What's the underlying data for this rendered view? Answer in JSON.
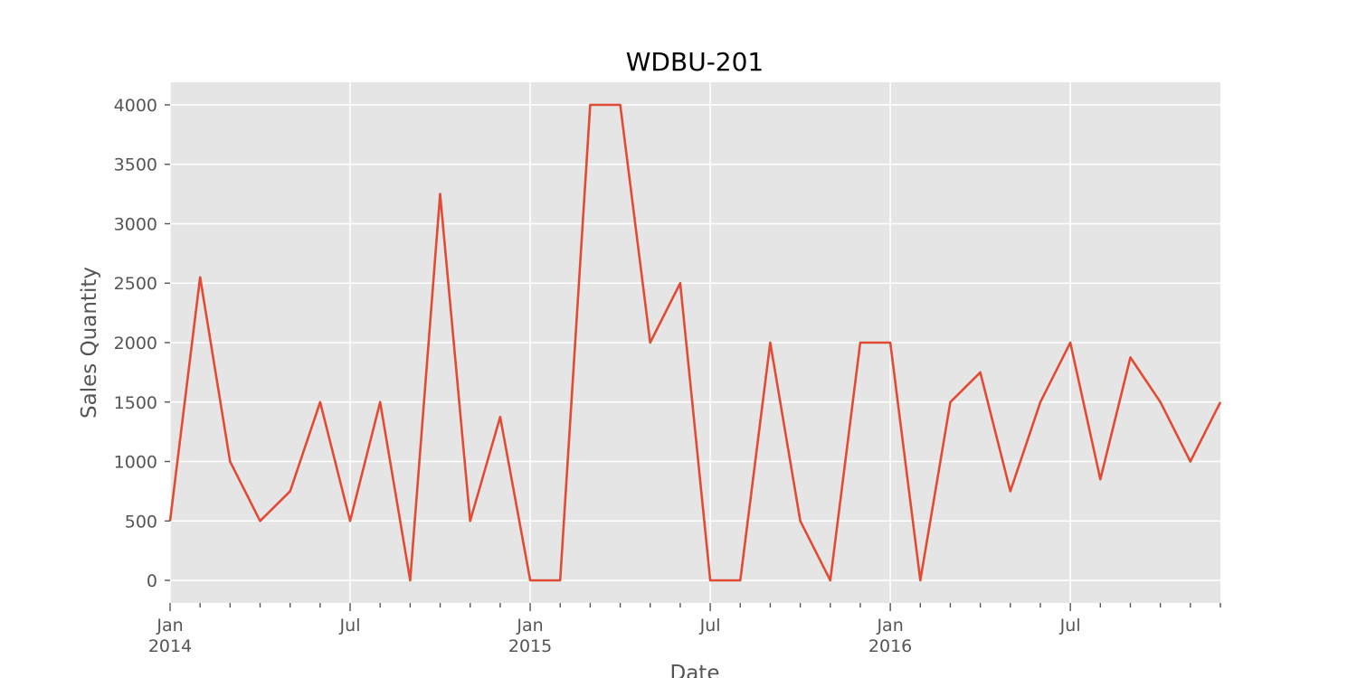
{
  "chart_data": {
    "type": "line",
    "title": "WDBU-201",
    "xlabel": "Date",
    "ylabel": "Sales Quantity",
    "ylim": [
      -190,
      4190
    ],
    "xlim": [
      "2014-01",
      "2016-12"
    ],
    "grid": true,
    "y_ticks": [
      0,
      500,
      1000,
      1500,
      2000,
      2500,
      3000,
      3500,
      4000
    ],
    "x_major_ticks": [
      {
        "date": "2014-01",
        "label": "Jan",
        "year": "2014"
      },
      {
        "date": "2014-07",
        "label": "Jul",
        "year": ""
      },
      {
        "date": "2015-01",
        "label": "Jan",
        "year": "2015"
      },
      {
        "date": "2015-07",
        "label": "Jul",
        "year": ""
      },
      {
        "date": "2016-01",
        "label": "Jan",
        "year": "2016"
      },
      {
        "date": "2016-07",
        "label": "Jul",
        "year": ""
      }
    ],
    "colors": {
      "series": "#E24A33",
      "plot_background": "#E5E5E5"
    },
    "x": [
      "2014-01",
      "2014-02",
      "2014-03",
      "2014-04",
      "2014-05",
      "2014-06",
      "2014-07",
      "2014-08",
      "2014-09",
      "2014-10",
      "2014-11",
      "2014-12",
      "2015-01",
      "2015-02",
      "2015-03",
      "2015-04",
      "2015-05",
      "2015-06",
      "2015-07",
      "2015-08",
      "2015-09",
      "2015-10",
      "2015-11",
      "2015-12",
      "2016-01",
      "2016-02",
      "2016-03",
      "2016-04",
      "2016-05",
      "2016-06",
      "2016-07",
      "2016-08",
      "2016-09",
      "2016-10",
      "2016-11",
      "2016-12"
    ],
    "values": [
      500,
      2550,
      1000,
      500,
      750,
      1500,
      500,
      1500,
      0,
      3250,
      500,
      1375,
      0,
      0,
      4000,
      4000,
      2000,
      2500,
      0,
      0,
      2000,
      500,
      0,
      2000,
      2000,
      0,
      1500,
      1750,
      750,
      1500,
      2000,
      850,
      1875,
      1500,
      1000,
      1500
    ]
  }
}
